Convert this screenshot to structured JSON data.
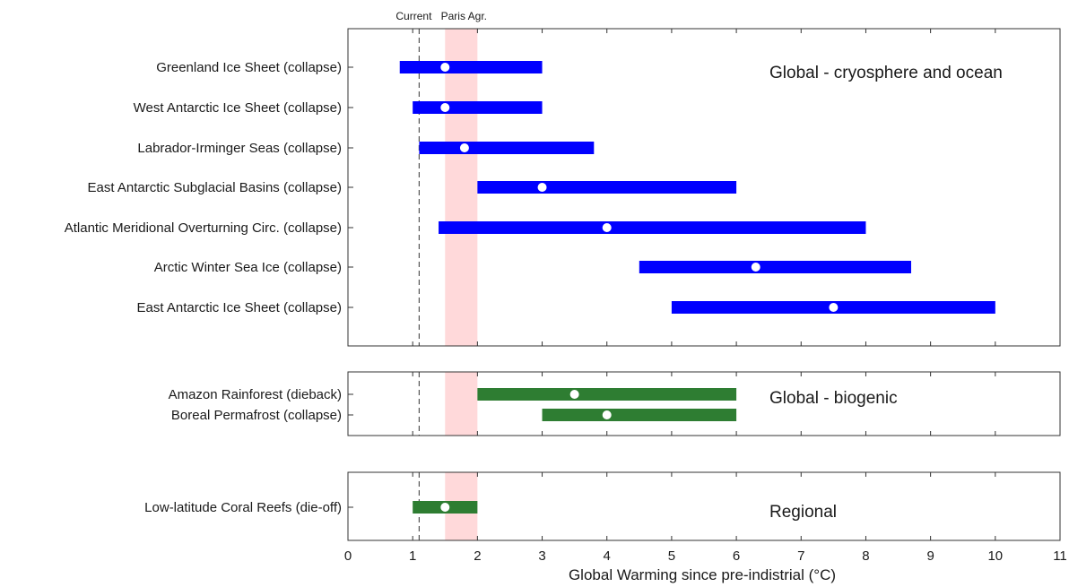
{
  "chart_data": {
    "type": "range",
    "xlabel": "Global Warming since pre-indistrial (°C)",
    "xlim": [
      0,
      11
    ],
    "xticks": [
      0,
      1,
      2,
      3,
      4,
      5,
      6,
      7,
      8,
      9,
      10,
      11
    ],
    "markers": [
      {
        "label": "Current",
        "x": 1.1,
        "style": "dashed"
      },
      {
        "label": "Paris Agr.",
        "range": [
          1.5,
          2.0
        ],
        "color": "#ffd9da"
      }
    ],
    "colors": {
      "cryosphere": "#0000ff",
      "biogenic": "#2e7d32",
      "point": "#ffffff"
    },
    "panels": [
      {
        "title": "Global - cryosphere and ocean",
        "items": [
          {
            "label": "Greenland Ice Sheet (collapse)",
            "low": 0.8,
            "high": 3.0,
            "best": 1.5
          },
          {
            "label": "West Antarctic Ice Sheet (collapse)",
            "low": 1.0,
            "high": 3.0,
            "best": 1.5
          },
          {
            "label": "Labrador-Irminger Seas (collapse)",
            "low": 1.1,
            "high": 3.8,
            "best": 1.8
          },
          {
            "label": "East Antarctic Subglacial Basins (collapse)",
            "low": 2.0,
            "high": 6.0,
            "best": 3.0
          },
          {
            "label": "Atlantic Meridional Overturning Circ. (collapse)",
            "low": 1.4,
            "high": 8.0,
            "best": 4.0
          },
          {
            "label": "Arctic Winter Sea Ice (collapse)",
            "low": 4.5,
            "high": 8.7,
            "best": 6.3
          },
          {
            "label": "East Antarctic Ice Sheet (collapse)",
            "low": 5.0,
            "high": 10.0,
            "best": 7.5
          }
        ]
      },
      {
        "title": "Global - biogenic",
        "items": [
          {
            "label": "Amazon Rainforest (dieback)",
            "low": 2.0,
            "high": 6.0,
            "best": 3.5
          },
          {
            "label": "Boreal Permafrost (collapse)",
            "low": 3.0,
            "high": 6.0,
            "best": 4.0
          }
        ]
      },
      {
        "title": "Regional",
        "items": [
          {
            "label": "Low-latitude Coral Reefs (die-off)",
            "low": 1.0,
            "high": 2.0,
            "best": 1.5
          }
        ]
      }
    ]
  }
}
